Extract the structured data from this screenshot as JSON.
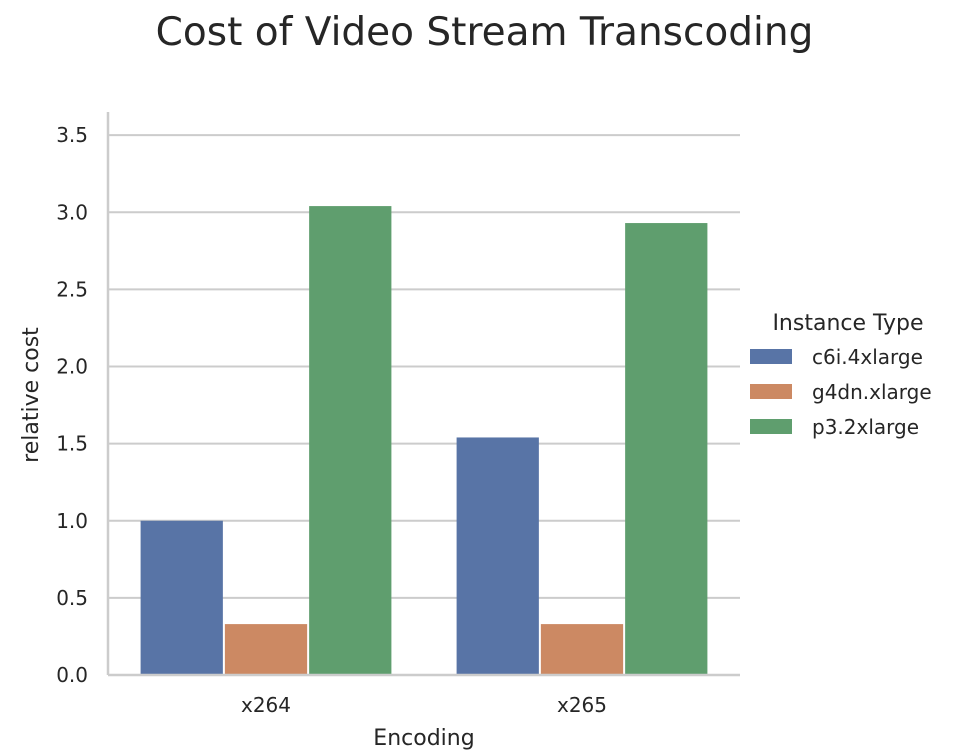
{
  "chart_data": {
    "type": "bar",
    "title": "Cost of Video Stream Transcoding",
    "xlabel": "Encoding",
    "ylabel": "relative cost",
    "categories": [
      "x264",
      "x265"
    ],
    "series": [
      {
        "name": "c6i.4xlarge",
        "values": [
          1.0,
          1.54
        ],
        "color": "#5874a6"
      },
      {
        "name": "g4dn.xlarge",
        "values": [
          0.33,
          0.33
        ],
        "color": "#cc8963"
      },
      {
        "name": "p3.2xlarge",
        "values": [
          3.04,
          2.93
        ],
        "color": "#5f9e6e"
      }
    ],
    "ylim": [
      0,
      3.65
    ],
    "yticks": [
      "0.0",
      "0.5",
      "1.0",
      "1.5",
      "2.0",
      "2.5",
      "3.0",
      "3.5"
    ],
    "grid": true,
    "legend_title": "Instance Type",
    "legend_position": "right"
  }
}
